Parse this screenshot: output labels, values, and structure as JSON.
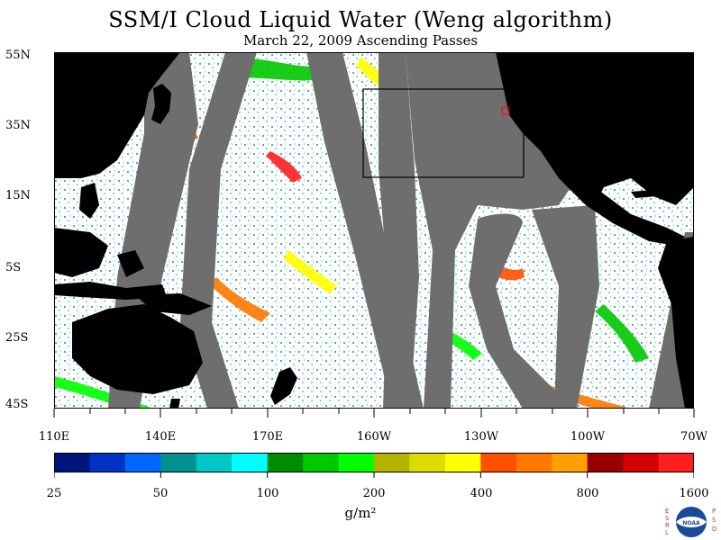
{
  "title": "SSM/I Cloud Liquid Water (Weng algorithm)",
  "subtitle": "March 22, 2009  Ascending Passes",
  "map": {
    "lat_labels": [
      "55N",
      "35N",
      "15N",
      "5S",
      "25S",
      "45S"
    ],
    "lon_labels": [
      "110E",
      "140E",
      "170E",
      "160W",
      "130W",
      "100W",
      "70W"
    ],
    "colors": {
      "land": "#000000",
      "no_data": "#6e6e6e",
      "clear": "#ffffff"
    }
  },
  "colorbar": {
    "tick_labels": [
      "25",
      "50",
      "100",
      "200",
      "400",
      "800",
      "1600"
    ],
    "units": "g/m²",
    "colors": [
      "#00157a",
      "#0033c4",
      "#0066ff",
      "#00908f",
      "#00c8c8",
      "#00ffff",
      "#008c00",
      "#00c800",
      "#00ff00",
      "#b4b400",
      "#dcdc00",
      "#ffff00",
      "#ff5000",
      "#ff7800",
      "#ffa000",
      "#960000",
      "#d20000",
      "#ff1e1e"
    ]
  },
  "logo": {
    "left_text": "ESRL",
    "right_text": "PSD",
    "center": "NOAA"
  }
}
